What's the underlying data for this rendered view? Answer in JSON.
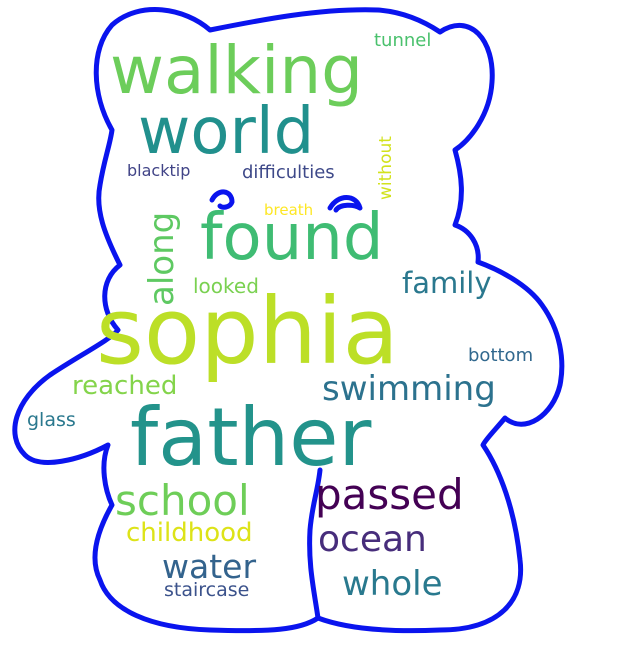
{
  "outline_color": "#0a14ee",
  "words": [
    {
      "text": "sophia",
      "color": "#bcdf27"
    },
    {
      "text": "father",
      "color": "#23938b"
    },
    {
      "text": "walking",
      "color": "#6ccd5a"
    },
    {
      "text": "world",
      "color": "#21908d"
    },
    {
      "text": "found",
      "color": "#3fbc73"
    },
    {
      "text": "passed",
      "color": "#440154"
    },
    {
      "text": "school",
      "color": "#6ece58"
    },
    {
      "text": "swimming",
      "color": "#2c728e"
    },
    {
      "text": "ocean",
      "color": "#472d7b"
    },
    {
      "text": "whole",
      "color": "#29798e"
    },
    {
      "text": "water",
      "color": "#33638d"
    },
    {
      "text": "along",
      "color": "#5ec962"
    },
    {
      "text": "family",
      "color": "#2a788e"
    },
    {
      "text": "reached",
      "color": "#84d44b"
    },
    {
      "text": "childhood",
      "color": "#dde318"
    },
    {
      "text": "looked",
      "color": "#7ad151"
    },
    {
      "text": "staircase",
      "color": "#3b528b"
    },
    {
      "text": "bottom",
      "color": "#31688e"
    },
    {
      "text": "glass",
      "color": "#2a788e"
    },
    {
      "text": "difficulties",
      "color": "#3e4989"
    },
    {
      "text": "blacktip",
      "color": "#414487"
    },
    {
      "text": "without",
      "color": "#d2e21b"
    },
    {
      "text": "tunnel",
      "color": "#4ac16d"
    },
    {
      "text": "breath",
      "color": "#fde725"
    }
  ]
}
